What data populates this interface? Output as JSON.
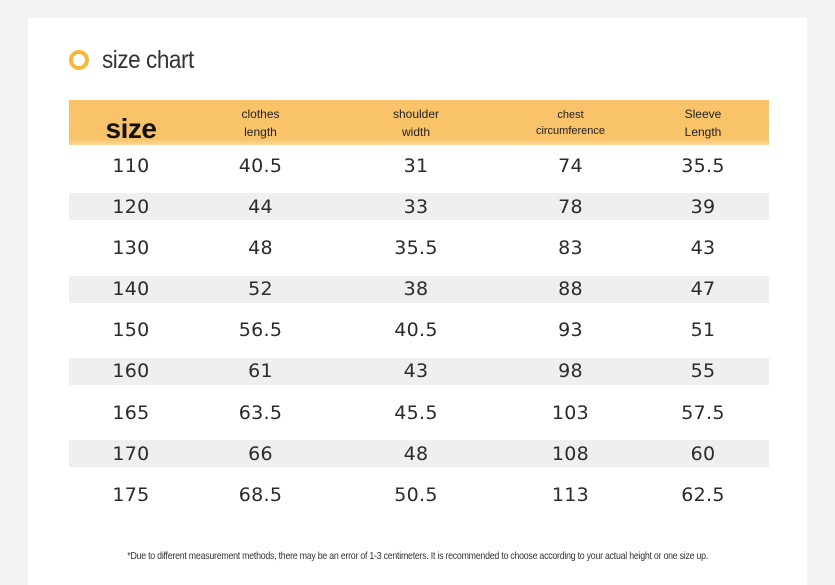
{
  "title": "size chart",
  "colors": {
    "accent": "#f5b83a",
    "header_bg": "#f9c36a",
    "stripe": "#efefef"
  },
  "icons": {
    "title_marker": "ring-icon"
  },
  "table": {
    "headers": [
      {
        "line1": "size",
        "line2": ""
      },
      {
        "line1": "clothes",
        "line2": "length"
      },
      {
        "line1": "shoulder",
        "line2": "width"
      },
      {
        "line1": "chest",
        "line2": "circumference"
      },
      {
        "line1": "Sleeve",
        "line2": "Length"
      }
    ],
    "rows": [
      [
        "110",
        "40.5",
        "31",
        "74",
        "35.5"
      ],
      [
        "120",
        "44",
        "33",
        "78",
        "39"
      ],
      [
        "130",
        "48",
        "35.5",
        "83",
        "43"
      ],
      [
        "140",
        "52",
        "38",
        "88",
        "47"
      ],
      [
        "150",
        "56.5",
        "40.5",
        "93",
        "51"
      ],
      [
        "160",
        "61",
        "43",
        "98",
        "55"
      ],
      [
        "165",
        "63.5",
        "45.5",
        "103",
        "57.5"
      ],
      [
        "170",
        "66",
        "48",
        "108",
        "60"
      ],
      [
        "175",
        "68.5",
        "50.5",
        "113",
        "62.5"
      ]
    ]
  },
  "note": "*Due to different measurement methods, there may be an error of 1-3 centimeters. It is recommended to choose according to your actual height or one size up."
}
